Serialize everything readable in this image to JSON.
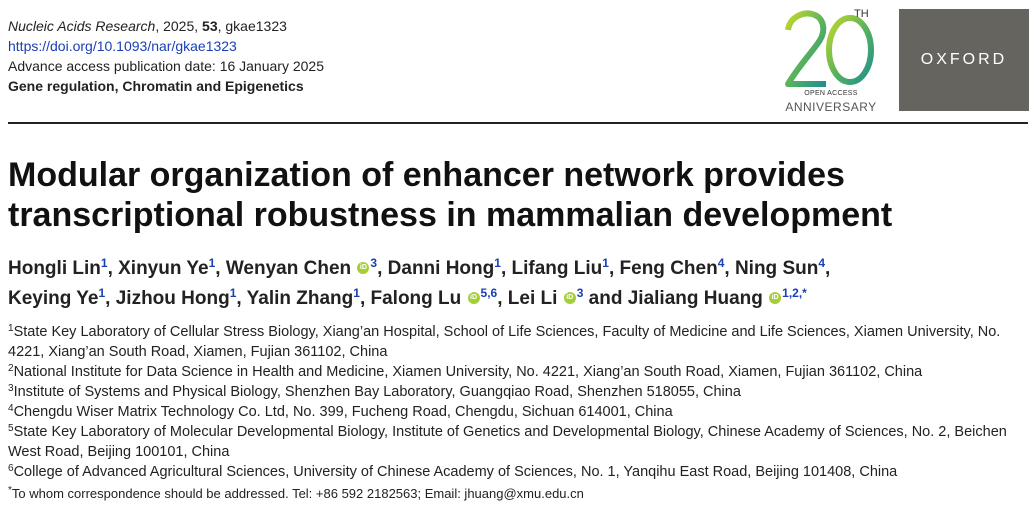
{
  "header": {
    "journal": "Nucleic Acids Research",
    "year_sep": ", 2025, ",
    "volume": "53",
    "article_id": ", gkae1323",
    "doi": "https://doi.org/10.1093/nar/gkae1323",
    "pub_date": "Advance access publication date: 16 January 2025",
    "section": "Gene regulation, Chromatin and Epigenetics"
  },
  "logo": {
    "number": "20",
    "th": "TH",
    "open_access": "OPEN ACCESS",
    "anniversary": "ANNIVERSARY",
    "publisher": "OXFORD",
    "colors": {
      "green": "#8dc63f",
      "teal": "#2a8f8a",
      "publisher_bg": "#66645f"
    }
  },
  "orcid_glyph": "iD",
  "title": "Modular organization of enhancer network provides transcriptional robustness in mammalian development",
  "authors": [
    {
      "name": "Hongli Lin",
      "aff": "1",
      "sep": ", "
    },
    {
      "name": "Xinyun Ye",
      "aff": "1",
      "sep": ", "
    },
    {
      "name": "Wenyan Chen",
      "aff": "3",
      "sep": ", "
    },
    {
      "name": "Danni Hong",
      "aff": "1",
      "sep": ", "
    },
    {
      "name": "Lifang Liu",
      "aff": "1",
      "sep": ", "
    },
    {
      "name": "Feng Chen",
      "aff": "4",
      "sep": ", "
    },
    {
      "name": "Ning Sun",
      "aff": "4",
      "sep": ","
    },
    {
      "name": "Keying Ye",
      "aff": "1",
      "sep": ", "
    },
    {
      "name": "Jizhou Hong",
      "aff": "1",
      "sep": ", "
    },
    {
      "name": "Yalin Zhang",
      "aff": "1",
      "sep": ", "
    },
    {
      "name": "Falong Lu",
      "aff": "5,6",
      "sep": ", "
    },
    {
      "name": "Lei Li",
      "aff": "3",
      "sep": " and "
    },
    {
      "name": "Jialiang Huang",
      "aff": "1,2,*",
      "sep": ""
    }
  ],
  "affiliations": [
    {
      "num": "1",
      "text": "State Key Laboratory of Cellular Stress Biology, Xiang’an Hospital, School of Life Sciences, Faculty of Medicine and Life Sciences, Xiamen University, No. 4221, Xiang’an South Road, Xiamen, Fujian 361102, China"
    },
    {
      "num": "2",
      "text": "National Institute for Data Science in Health and Medicine, Xiamen University, No. 4221, Xiang’an South Road, Xiamen, Fujian 361102, China"
    },
    {
      "num": "3",
      "text": "Institute of Systems and Physical Biology, Shenzhen Bay Laboratory, Guangqiao Road, Shenzhen 518055, China"
    },
    {
      "num": "4",
      "text": "Chengdu Wiser Matrix Technology Co. Ltd, No. 399, Fucheng Road, Chengdu, Sichuan 614001, China"
    },
    {
      "num": "5",
      "text": "State Key Laboratory of Molecular Developmental Biology, Institute of Genetics and Developmental Biology, Chinese Academy of Sciences, No. 2, Beichen West Road, Beijing 100101, China"
    },
    {
      "num": "6",
      "text": "College of Advanced Agricultural Sciences, University of Chinese Academy of Sciences, No. 1, Yanqihu East Road, Beijing 101408, China"
    }
  ],
  "correspondence": {
    "mark": "*",
    "text": "To whom correspondence should be addressed. Tel: +86 592 2182563; Email: jhuang@xmu.edu.cn"
  }
}
